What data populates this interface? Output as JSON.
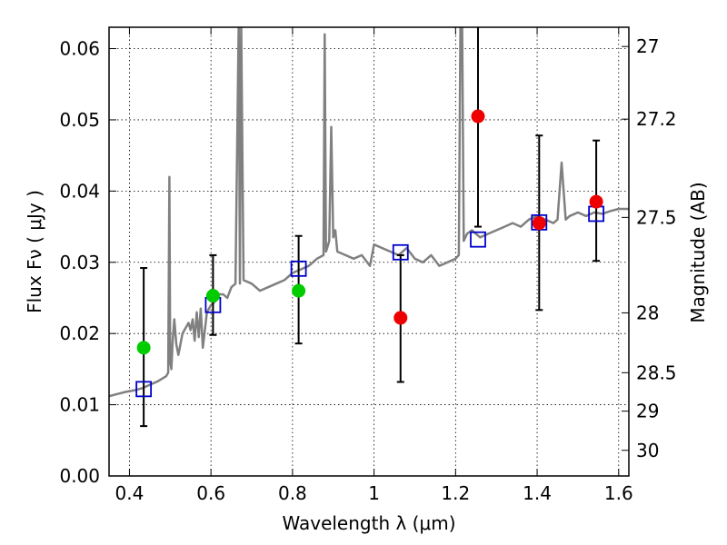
{
  "chart_data": {
    "type": "scatter",
    "xlabel": "Wavelength  λ (μm)",
    "ylabel": "Flux  Fν  ( μJy )",
    "y2label": "Magnitude (AB)",
    "xlim": [
      0.35,
      1.625
    ],
    "ylim": [
      0.0,
      0.063
    ],
    "grid": true,
    "x_ticks": [
      0.4,
      0.6,
      0.8,
      1.0,
      1.2,
      1.4,
      1.6
    ],
    "x_tick_labels": [
      "0.4",
      "0.6",
      "0.8",
      "1",
      "1.2",
      "1.4",
      "1.6"
    ],
    "y_ticks": [
      0.0,
      0.01,
      0.02,
      0.03,
      0.04,
      0.05,
      0.06
    ],
    "y_tick_labels": [
      "0.00",
      "0.01",
      "0.02",
      "0.03",
      "0.04",
      "0.05",
      "0.06"
    ],
    "y2_ticks": [
      {
        "flux": 0.0603,
        "label": "27"
      },
      {
        "flux": 0.0501,
        "label": "27.2"
      },
      {
        "flux": 0.0363,
        "label": "27.5"
      },
      {
        "flux": 0.0229,
        "label": "28"
      },
      {
        "flux": 0.0145,
        "label": "28.5"
      },
      {
        "flux": 0.0091,
        "label": "29"
      },
      {
        "flux": 0.0036,
        "label": "30"
      }
    ],
    "colors": {
      "spectrum": "#808080",
      "green": "#00cc00",
      "red": "#ee0000",
      "model_box": "#0000cc",
      "errorbar": "#000000"
    },
    "spectrum": {
      "x": [
        0.35,
        0.37,
        0.39,
        0.41,
        0.43,
        0.45,
        0.47,
        0.49,
        0.495,
        0.498,
        0.5,
        0.503,
        0.506,
        0.51,
        0.515,
        0.52,
        0.53,
        0.545,
        0.55,
        0.555,
        0.56,
        0.565,
        0.57,
        0.575,
        0.58,
        0.59,
        0.6,
        0.61,
        0.62,
        0.63,
        0.64,
        0.65,
        0.66,
        0.668,
        0.671,
        0.674,
        0.68,
        0.7,
        0.72,
        0.74,
        0.76,
        0.78,
        0.8,
        0.82,
        0.84,
        0.86,
        0.876,
        0.879,
        0.882,
        0.885,
        0.89,
        0.895,
        0.9,
        0.905,
        0.91,
        0.93,
        0.95,
        0.97,
        0.99,
        1.0,
        1.02,
        1.04,
        1.06,
        1.08,
        1.1,
        1.12,
        1.14,
        1.16,
        1.18,
        1.2,
        1.208,
        1.212,
        1.216,
        1.22,
        1.228,
        1.24,
        1.26,
        1.28,
        1.3,
        1.32,
        1.34,
        1.36,
        1.38,
        1.4,
        1.42,
        1.44,
        1.45,
        1.46,
        1.47,
        1.48,
        1.5,
        1.52,
        1.54,
        1.56,
        1.58,
        1.6,
        1.625
      ],
      "y": [
        0.0112,
        0.0115,
        0.0118,
        0.012,
        0.0123,
        0.0128,
        0.0133,
        0.014,
        0.0145,
        0.042,
        0.016,
        0.015,
        0.019,
        0.022,
        0.0185,
        0.017,
        0.02,
        0.0215,
        0.0205,
        0.022,
        0.019,
        0.023,
        0.0195,
        0.0235,
        0.018,
        0.023,
        0.024,
        0.0245,
        0.0255,
        0.0255,
        0.025,
        0.0265,
        0.027,
        0.064,
        0.027,
        0.064,
        0.0275,
        0.027,
        0.026,
        0.0265,
        0.027,
        0.0275,
        0.0285,
        0.029,
        0.0295,
        0.0305,
        0.031,
        0.062,
        0.0315,
        0.032,
        0.033,
        0.049,
        0.0335,
        0.0345,
        0.0315,
        0.031,
        0.0305,
        0.031,
        0.0295,
        0.0325,
        0.032,
        0.0315,
        0.031,
        0.032,
        0.0305,
        0.03,
        0.031,
        0.0295,
        0.03,
        0.0305,
        0.031,
        0.064,
        0.064,
        0.033,
        0.034,
        0.0345,
        0.0335,
        0.034,
        0.0345,
        0.035,
        0.0355,
        0.035,
        0.036,
        0.0365,
        0.036,
        0.0355,
        0.036,
        0.044,
        0.036,
        0.0365,
        0.037,
        0.0365,
        0.037,
        0.0368,
        0.0372,
        0.0375,
        0.0375
      ]
    },
    "model_points": {
      "x": [
        0.435,
        0.605,
        0.815,
        1.065,
        1.255,
        1.405,
        1.545
      ],
      "y": [
        0.0122,
        0.024,
        0.0291,
        0.0314,
        0.0332,
        0.0356,
        0.0368
      ]
    },
    "observed_points": [
      {
        "x": 0.435,
        "y": 0.018,
        "err_low": 0.007,
        "err_high": 0.0292,
        "color": "green"
      },
      {
        "x": 0.605,
        "y": 0.0253,
        "err_low": 0.0198,
        "err_high": 0.031,
        "color": "green"
      },
      {
        "x": 0.815,
        "y": 0.026,
        "err_low": 0.0186,
        "err_high": 0.0337,
        "color": "green"
      },
      {
        "x": 1.065,
        "y": 0.0222,
        "err_low": 0.0132,
        "err_high": 0.031,
        "color": "red"
      },
      {
        "x": 1.255,
        "y": 0.0505,
        "err_low": 0.035,
        "err_high": 0.064,
        "color": "red"
      },
      {
        "x": 1.405,
        "y": 0.0355,
        "err_low": 0.0233,
        "err_high": 0.0478,
        "color": "red"
      },
      {
        "x": 1.545,
        "y": 0.0385,
        "err_low": 0.0302,
        "err_high": 0.0471,
        "color": "red"
      }
    ]
  }
}
